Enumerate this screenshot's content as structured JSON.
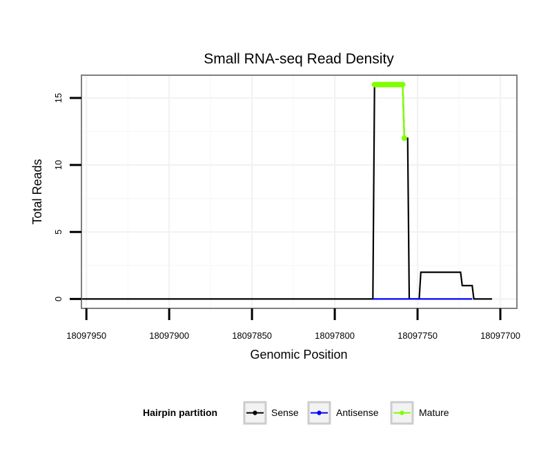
{
  "chart_data": {
    "type": "line",
    "title": "Small RNA-seq Read Density",
    "xlabel": "Genomic Position",
    "ylabel": "Total Reads",
    "x_reversed": true,
    "xlim": [
      18097953,
      18097690
    ],
    "ylim": [
      -0.7,
      16.7
    ],
    "x_ticks": [
      18097950,
      18097900,
      18097850,
      18097800,
      18097750,
      18097700
    ],
    "x_tick_labels": [
      "18097950",
      "18097900",
      "18097850",
      "18097800",
      "18097750",
      "18097700"
    ],
    "y_ticks": [
      0,
      5,
      10,
      15
    ],
    "y_tick_labels": [
      "0",
      "5",
      "10",
      "15"
    ],
    "grid": true,
    "legend": {
      "title": "Hairpin partition",
      "position": "bottom",
      "entries": [
        {
          "name": "Sense",
          "color": "#000000"
        },
        {
          "name": "Antisense",
          "color": "#0000ff"
        },
        {
          "name": "Mature",
          "color": "#7fff00"
        }
      ]
    },
    "series": [
      {
        "name": "Sense",
        "color": "#000000",
        "marker": false,
        "x": [
          18097955,
          18097777,
          18097776,
          18097759,
          18097758,
          18097756,
          18097755,
          18097749,
          18097748,
          18097724,
          18097723,
          18097717,
          18097716,
          18097705
        ],
        "y": [
          0,
          0,
          16,
          16,
          12,
          12,
          0,
          0,
          2,
          2,
          1,
          1,
          0,
          0
        ]
      },
      {
        "name": "Antisense",
        "color": "#0000ff",
        "marker": false,
        "x": [
          18097777,
          18097717
        ],
        "y": [
          0,
          0
        ]
      },
      {
        "name": "Mature",
        "color": "#7fff00",
        "marker": true,
        "x": [
          18097776,
          18097775,
          18097774,
          18097773,
          18097772,
          18097771,
          18097770,
          18097769,
          18097768,
          18097767,
          18097766,
          18097765,
          18097764,
          18097763,
          18097762,
          18097761,
          18097760,
          18097759,
          18097758
        ],
        "y": [
          16,
          16,
          16,
          16,
          16,
          16,
          16,
          16,
          16,
          16,
          16,
          16,
          16,
          16,
          16,
          16,
          16,
          16,
          12
        ]
      }
    ]
  }
}
